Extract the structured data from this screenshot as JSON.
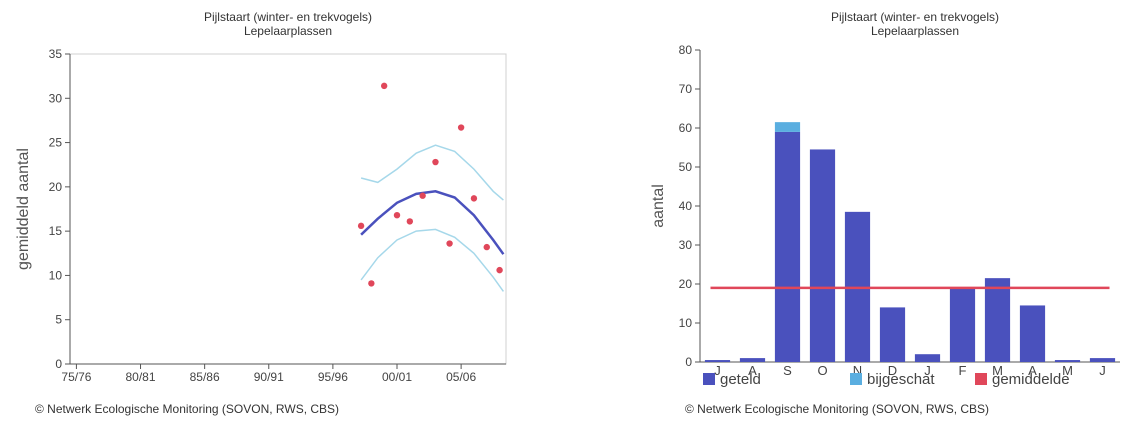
{
  "chart_data": [
    {
      "type": "scatter",
      "title": "Pijlstaart (winter- en trekvogels)",
      "subtitle": "Lepelaarplassen",
      "ylabel": "gemiddeld aantal",
      "xlabel": "",
      "x_ticks": [
        "75/76",
        "80/81",
        "85/86",
        "90/91",
        "95/96",
        "00/01",
        "05/06"
      ],
      "ylim": [
        0,
        35
      ],
      "y_ticks": [
        0,
        5,
        10,
        15,
        20,
        25,
        30,
        35
      ],
      "points": [
        {
          "x": 1997.7,
          "y": 15.6
        },
        {
          "x": 1998.5,
          "y": 9.1
        },
        {
          "x": 1999.5,
          "y": 31.4
        },
        {
          "x": 2000.5,
          "y": 16.8
        },
        {
          "x": 2001.5,
          "y": 16.1
        },
        {
          "x": 2002.5,
          "y": 19.0
        },
        {
          "x": 2003.5,
          "y": 22.8
        },
        {
          "x": 2004.6,
          "y": 13.6
        },
        {
          "x": 2005.5,
          "y": 26.7
        },
        {
          "x": 2006.5,
          "y": 18.7
        },
        {
          "x": 2007.5,
          "y": 13.2
        },
        {
          "x": 2008.5,
          "y": 10.6
        }
      ],
      "trend": {
        "x": [
          1997.7,
          1999.0,
          2000.5,
          2002.0,
          2003.5,
          2005.0,
          2006.5,
          2008.0,
          2008.8
        ],
        "y": [
          14.6,
          16.4,
          18.2,
          19.2,
          19.5,
          18.8,
          16.8,
          14.0,
          12.4
        ]
      },
      "band_upper": {
        "x": [
          1997.7,
          1999.0,
          2000.5,
          2002.0,
          2003.5,
          2005.0,
          2006.5,
          2008.0,
          2008.8
        ],
        "y": [
          21.0,
          20.5,
          22.0,
          23.8,
          24.7,
          24.0,
          22.0,
          19.5,
          18.5
        ]
      },
      "band_lower": {
        "x": [
          1997.7,
          1999.0,
          2000.5,
          2002.0,
          2003.5,
          2005.0,
          2006.5,
          2008.0,
          2008.8
        ],
        "y": [
          9.5,
          12.0,
          14.0,
          15.0,
          15.2,
          14.3,
          12.5,
          9.8,
          8.2
        ]
      },
      "colors": {
        "points": "#e0475a",
        "trend": "#4a51bd",
        "band": "#a6d8ea"
      },
      "grid": false
    },
    {
      "type": "bar",
      "title": "Pijlstaart (winter- en trekvogels)",
      "subtitle": "Lepelaarplassen",
      "ylabel": "aantal",
      "categories": [
        "J",
        "A",
        "S",
        "O",
        "N",
        "D",
        "J",
        "F",
        "M",
        "A",
        "M",
        "J"
      ],
      "ylim": [
        0,
        80
      ],
      "y_ticks": [
        0,
        10,
        20,
        30,
        40,
        50,
        60,
        70,
        80
      ],
      "series": [
        {
          "name": "geteld",
          "values": [
            0.5,
            1,
            59,
            54.5,
            38.5,
            14,
            2,
            19,
            21.5,
            14.5,
            0.5,
            1
          ],
          "color": "#4a51bd"
        },
        {
          "name": "bijgeschat",
          "values": [
            0,
            0,
            2.5,
            0,
            0,
            0,
            0,
            0,
            0,
            0,
            0,
            0
          ],
          "color": "#5aaee0"
        }
      ],
      "average_line": {
        "name": "gemiddelde",
        "value": 19,
        "color": "#e0475a"
      },
      "legend_position": "bottom",
      "grid": false
    }
  ],
  "copyright": {
    "left": "© Netwerk Ecologische Monitoring (SOVON, RWS, CBS)",
    "right": "© Netwerk Ecologische Monitoring (SOVON, RWS, CBS)"
  }
}
